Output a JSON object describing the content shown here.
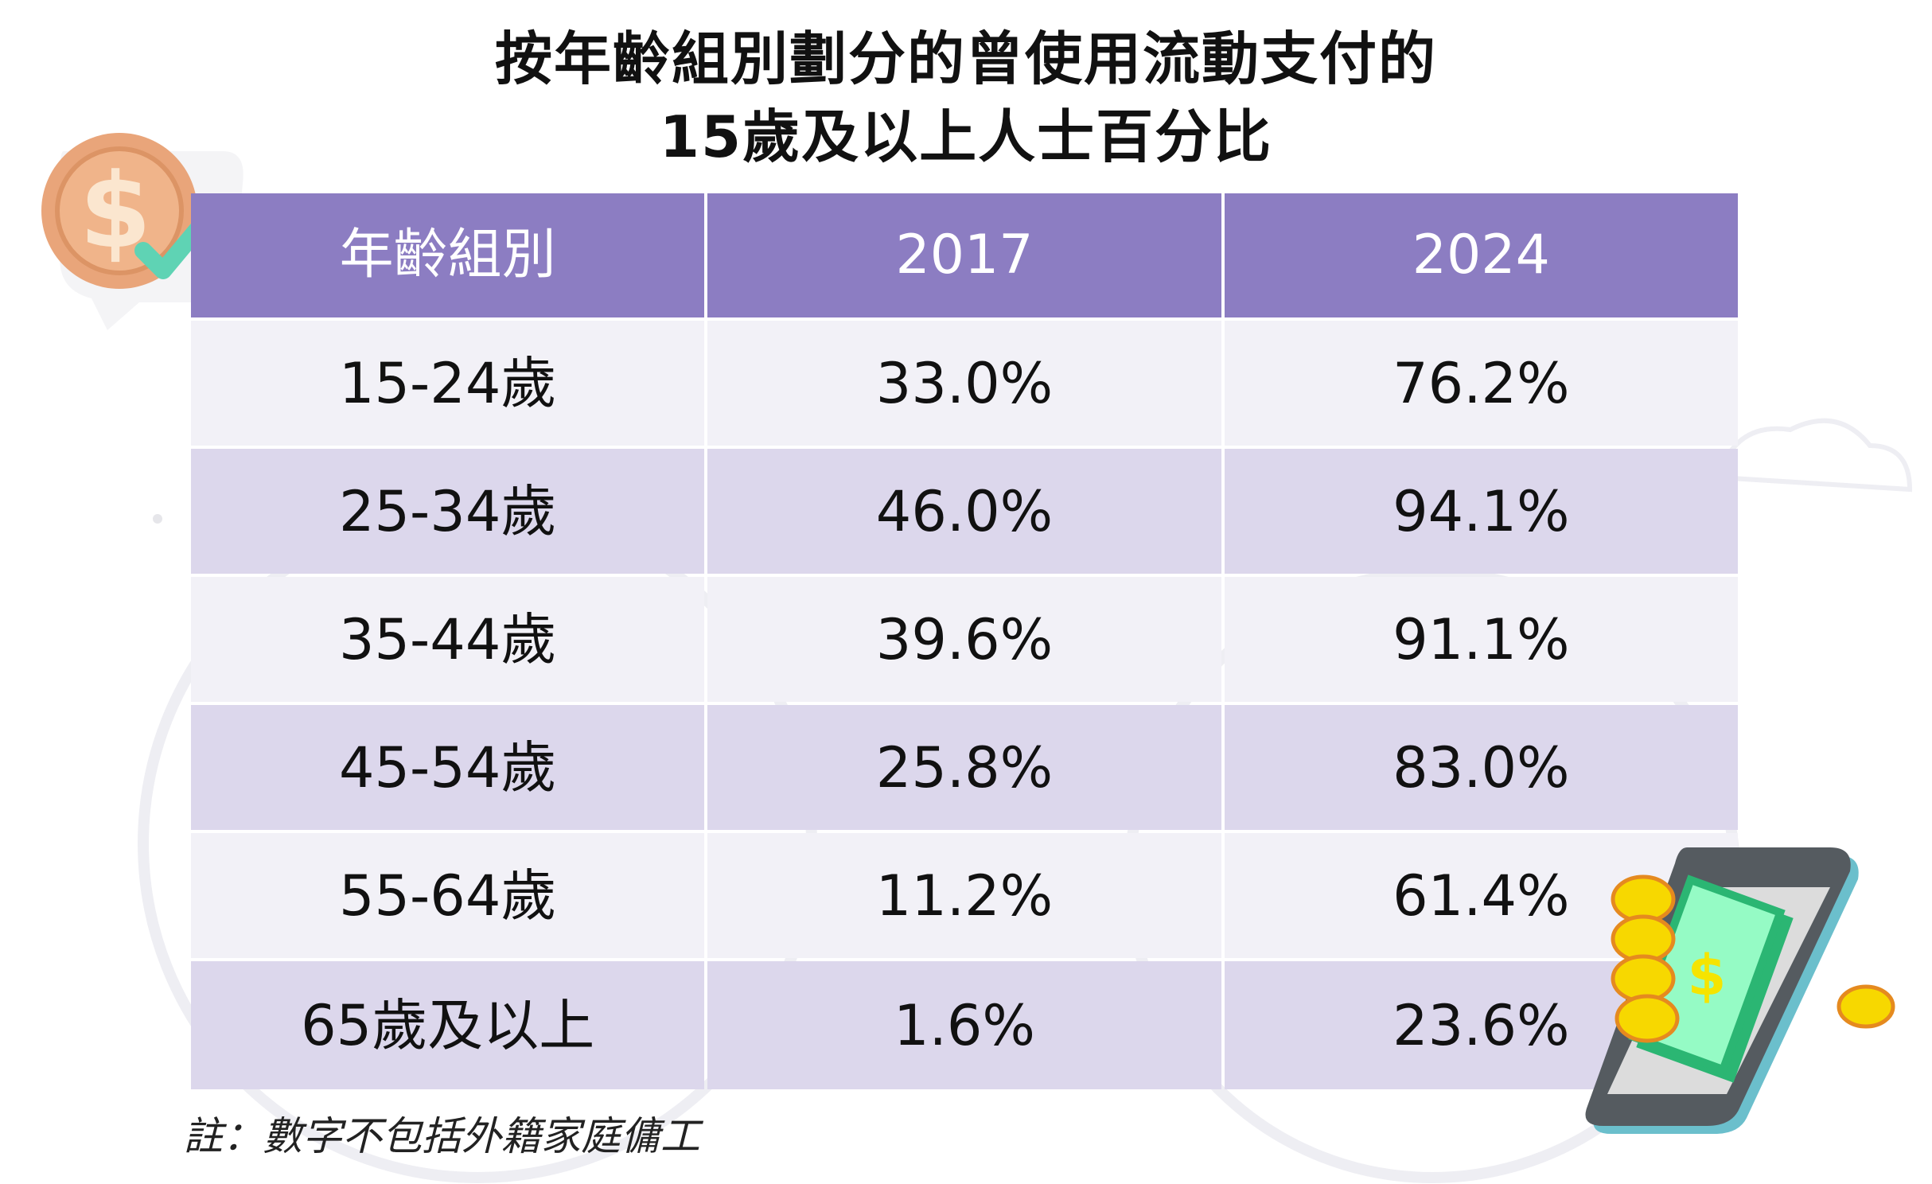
{
  "title": {
    "line1": "按年齡組別劃分的曾使用流動支付的",
    "line2": "15歲及以上人士百分比"
  },
  "table": {
    "headers": [
      "年齡組別",
      "2017",
      "2024"
    ],
    "rows": [
      [
        "15-24歲",
        "33.0%",
        "76.2%"
      ],
      [
        "25-34歲",
        "46.0%",
        "94.1%"
      ],
      [
        "35-44歲",
        "39.6%",
        "91.1%"
      ],
      [
        "45-54歲",
        "25.8%",
        "83.0%"
      ],
      [
        "55-64歲",
        "11.2%",
        "61.4%"
      ],
      [
        "65歲及以上",
        "1.6%",
        "23.6%"
      ]
    ]
  },
  "note": "註：數字不包括外籍家庭傭工",
  "colors": {
    "header": "#8c7dc2",
    "row_light": "#f2f1f7",
    "row_dark": "#dcd7ec"
  },
  "icons": [
    "coin-check-icon",
    "phone-money-icon"
  ]
}
